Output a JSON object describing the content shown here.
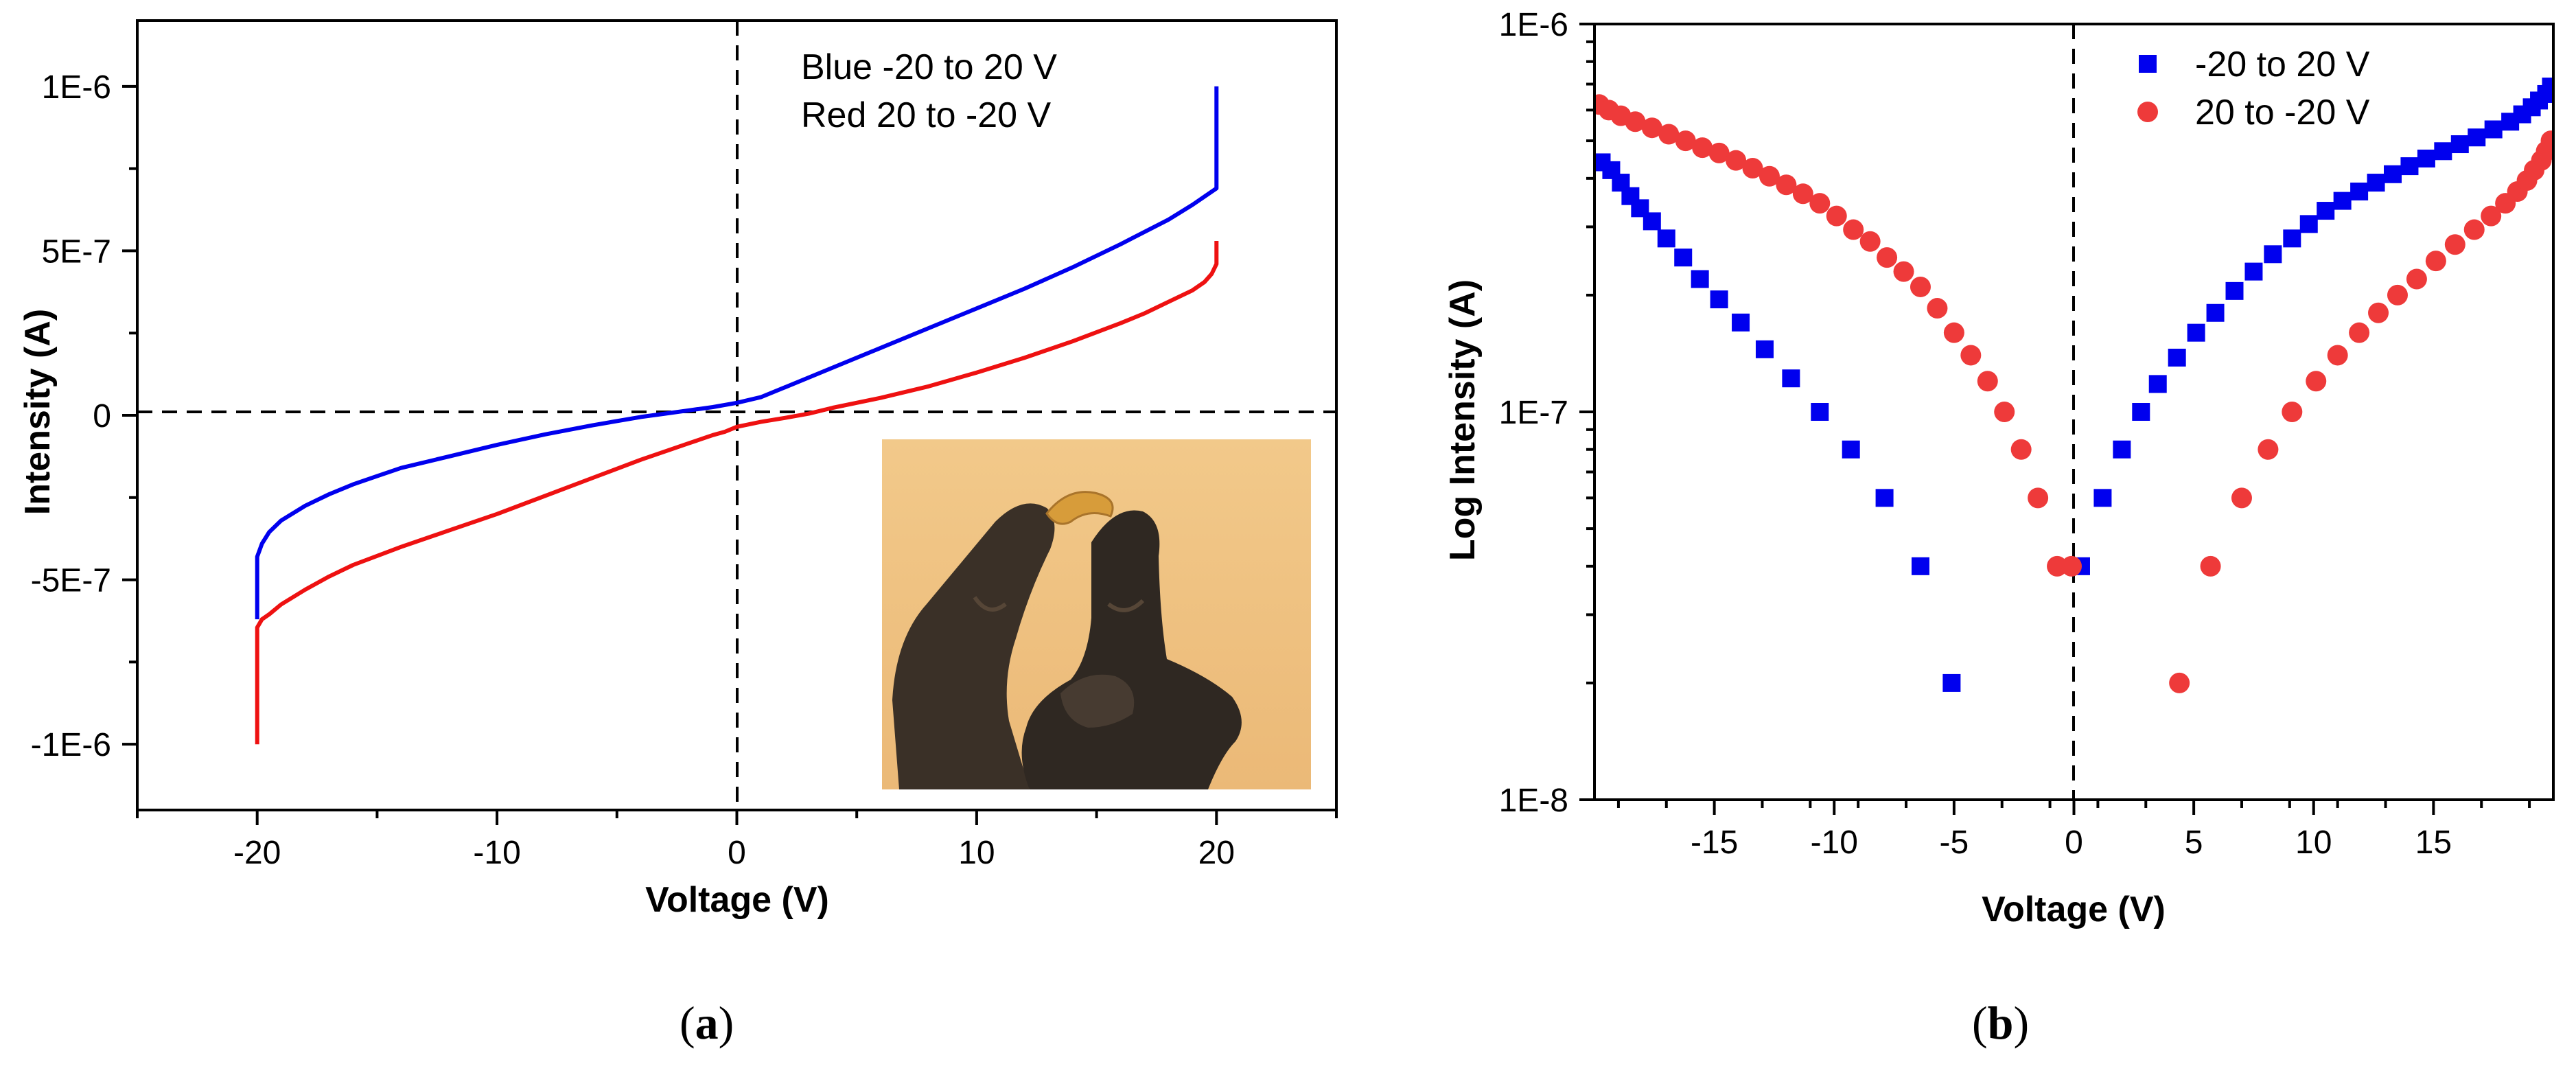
{
  "colors": {
    "blue": "#0000ee",
    "red": "#ee1111",
    "red_marker": "#ee3a3a",
    "frame": "#000000"
  },
  "chart_data": [
    {
      "type": "line",
      "panel_label": "a",
      "title": "",
      "xlabel": "Voltage (V)",
      "ylabel": "Intensity (A)",
      "xlim": [
        -25,
        25
      ],
      "ylim": [
        -1.2e-06,
        1.2e-06
      ],
      "x_major_ticks": [
        -20,
        -10,
        0,
        10,
        20
      ],
      "x_tick_labels": [
        "-20",
        "-10",
        "0",
        "10",
        "20"
      ],
      "y_major_ticks": [
        -1e-06,
        -5e-07,
        0,
        5e-07,
        1e-06
      ],
      "y_tick_labels": [
        "-1E-6",
        "-5E-7",
        "0",
        "5E-7",
        "1E-6"
      ],
      "annotations": [
        "Blue -20 to 20 V",
        "Red 20 to -20 V"
      ],
      "inset": "photo of a flexible film held between gloved fingers",
      "series": [
        {
          "name": "Blue -20 to 20 V",
          "color": "blue",
          "x": [
            -20,
            -20,
            -19.8,
            -19.5,
            -19,
            -18,
            -17,
            -16,
            -15,
            -14,
            -12,
            -10,
            -8,
            -6,
            -4,
            -3,
            -2,
            -1,
            0,
            1,
            2,
            4,
            6,
            8,
            10,
            12,
            14,
            16,
            18,
            19,
            19.5,
            20,
            20
          ],
          "y": [
            -6.2e-07,
            -4.3e-07,
            -3.9e-07,
            -3.55e-07,
            -3.2e-07,
            -2.75e-07,
            -2.4e-07,
            -2.1e-07,
            -1.85e-07,
            -1.6e-07,
            -1.25e-07,
            -9e-08,
            -5.8e-08,
            -3e-08,
            -5e-09,
            5e-09,
            1.5e-08,
            2.5e-08,
            3.8e-08,
            5.5e-08,
            8.5e-08,
            1.45e-07,
            2.05e-07,
            2.65e-07,
            3.25e-07,
            3.85e-07,
            4.5e-07,
            5.2e-07,
            5.95e-07,
            6.4e-07,
            6.65e-07,
            6.9e-07,
            1e-06
          ]
        },
        {
          "name": "Red 20 to -20 V",
          "color": "red",
          "x": [
            20,
            20,
            19.8,
            19.5,
            19,
            18,
            17,
            16,
            14,
            12,
            10,
            8,
            6,
            4,
            3,
            2,
            1,
            0,
            -0.5,
            -1,
            -2,
            -4,
            -6,
            -8,
            -10,
            -12,
            -14,
            -16,
            -17,
            -18,
            -19,
            -19.5,
            -19.8,
            -20,
            -20
          ],
          "y": [
            5.3e-07,
            4.6e-07,
            4.3e-07,
            4.05e-07,
            3.8e-07,
            3.45e-07,
            3.1e-07,
            2.8e-07,
            2.25e-07,
            1.75e-07,
            1.3e-07,
            8.8e-08,
            5.3e-08,
            2.3e-08,
            5e-09,
            -8e-09,
            -2e-08,
            -3.5e-08,
            -5e-08,
            -6e-08,
            -8.5e-08,
            -1.35e-07,
            -1.9e-07,
            -2.45e-07,
            -3e-07,
            -3.5e-07,
            -4e-07,
            -4.55e-07,
            -4.9e-07,
            -5.3e-07,
            -5.75e-07,
            -6.05e-07,
            -6.2e-07,
            -6.45e-07,
            -1e-06
          ]
        }
      ]
    },
    {
      "type": "scatter",
      "panel_label": "b",
      "title": "",
      "xlabel": "Voltage (V)",
      "ylabel": "Log Intensity (A)",
      "xscale": "linear",
      "yscale": "log",
      "xlim": [
        -20,
        20
      ],
      "ylim": [
        1e-08,
        1e-06
      ],
      "x_major_ticks": [
        -15,
        -10,
        -5,
        0,
        5,
        10,
        15
      ],
      "x_tick_labels": [
        "-15",
        "-10",
        "-5",
        "0",
        "5",
        "10",
        "15"
      ],
      "y_major_ticks": [
        1e-08,
        1e-07,
        1e-06
      ],
      "y_tick_labels": [
        "1E-8",
        "1E-7",
        "1E-6"
      ],
      "legend_position": "top-center",
      "series": [
        {
          "name": "-20 to 20 V",
          "marker": "square",
          "color": "blue",
          "x": [
            -19.7,
            -19.3,
            -18.9,
            -18.5,
            -18.1,
            -17.6,
            -17.0,
            -16.3,
            -15.6,
            -14.8,
            -13.9,
            -12.9,
            -11.8,
            -10.6,
            -9.3,
            -7.9,
            -6.4,
            -5.1,
            0.3,
            1.2,
            2.0,
            2.8,
            3.5,
            4.3,
            5.1,
            5.9,
            6.7,
            7.5,
            8.3,
            9.1,
            9.8,
            10.5,
            11.2,
            11.9,
            12.6,
            13.3,
            14.0,
            14.7,
            15.4,
            16.1,
            16.8,
            17.5,
            18.2,
            18.7,
            19.1,
            19.4,
            19.7,
            19.9
          ],
          "y": [
            4.4e-07,
            4.2e-07,
            3.9e-07,
            3.6e-07,
            3.35e-07,
            3.1e-07,
            2.8e-07,
            2.5e-07,
            2.2e-07,
            1.95e-07,
            1.7e-07,
            1.45e-07,
            1.22e-07,
            1e-07,
            8e-08,
            6e-08,
            4e-08,
            2e-08,
            4e-08,
            6e-08,
            8e-08,
            1e-07,
            1.18e-07,
            1.38e-07,
            1.6e-07,
            1.8e-07,
            2.05e-07,
            2.3e-07,
            2.55e-07,
            2.8e-07,
            3.05e-07,
            3.3e-07,
            3.5e-07,
            3.7e-07,
            3.9e-07,
            4.1e-07,
            4.3e-07,
            4.5e-07,
            4.7e-07,
            4.9e-07,
            5.1e-07,
            5.35e-07,
            5.6e-07,
            5.85e-07,
            6.1e-07,
            6.35e-07,
            6.6e-07,
            6.9e-07
          ]
        },
        {
          "name": "20 to -20 V",
          "marker": "circle",
          "color": "red_marker",
          "x": [
            -19.8,
            -19.4,
            -18.9,
            -18.3,
            -17.6,
            -16.9,
            -16.2,
            -15.5,
            -14.8,
            -14.1,
            -13.4,
            -12.7,
            -12.0,
            -11.3,
            -10.6,
            -9.9,
            -9.2,
            -8.5,
            -7.8,
            -7.1,
            -6.4,
            -5.7,
            -5.0,
            -4.3,
            -3.6,
            -2.9,
            -2.2,
            -1.5,
            -0.7,
            -0.1,
            4.4,
            5.7,
            7.0,
            8.1,
            9.1,
            10.1,
            11.0,
            11.9,
            12.7,
            13.5,
            14.3,
            15.1,
            15.9,
            16.7,
            17.4,
            18.0,
            18.5,
            18.9,
            19.2,
            19.5,
            19.7,
            19.9
          ],
          "y": [
            6.2e-07,
            6e-07,
            5.8e-07,
            5.6e-07,
            5.4e-07,
            5.2e-07,
            5e-07,
            4.8e-07,
            4.65e-07,
            4.45e-07,
            4.25e-07,
            4.05e-07,
            3.85e-07,
            3.65e-07,
            3.45e-07,
            3.2e-07,
            2.95e-07,
            2.75e-07,
            2.5e-07,
            2.3e-07,
            2.1e-07,
            1.85e-07,
            1.6e-07,
            1.4e-07,
            1.2e-07,
            1e-07,
            8e-08,
            6e-08,
            4e-08,
            4e-08,
            2e-08,
            4e-08,
            6e-08,
            8e-08,
            1e-07,
            1.2e-07,
            1.4e-07,
            1.6e-07,
            1.8e-07,
            2e-07,
            2.2e-07,
            2.45e-07,
            2.7e-07,
            2.95e-07,
            3.2e-07,
            3.45e-07,
            3.7e-07,
            3.95e-07,
            4.2e-07,
            4.45e-07,
            4.7e-07,
            5e-07
          ]
        }
      ]
    }
  ]
}
